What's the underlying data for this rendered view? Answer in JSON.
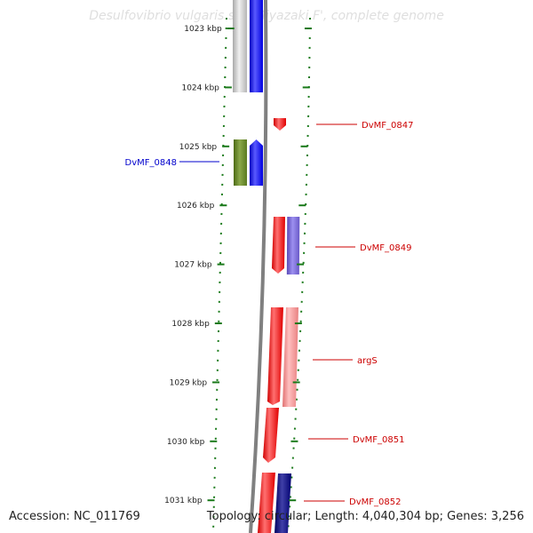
{
  "title": "Desulfovibrio vulgaris str. 'Miyazaki F', complete genome",
  "accession_text": "Accession: NC_011769",
  "topology_text": "Topology: circular; Length: 4,040,304 bp; Genes: 3,256",
  "colors": {
    "backbone": "#888888",
    "tick": "#1a7a1a",
    "forward_label": "#cc0000",
    "reverse_label": "#0000cc"
  },
  "scale": {
    "ticks": [
      {
        "label": "1023 kbp"
      },
      {
        "label": "1024 kbp"
      },
      {
        "label": "1025 kbp"
      },
      {
        "label": "1026 kbp"
      },
      {
        "label": "1027 kbp"
      },
      {
        "label": "1028 kbp"
      },
      {
        "label": "1029 kbp"
      },
      {
        "label": "1030 kbp"
      },
      {
        "label": "1031 kbp"
      }
    ]
  },
  "gene_labels": [
    {
      "text": "DvMF_0847",
      "strand": "forward"
    },
    {
      "text": "DvMF_0848",
      "strand": "reverse"
    },
    {
      "text": "DvMF_0849",
      "strand": "forward"
    },
    {
      "text": "argS",
      "strand": "forward"
    },
    {
      "text": "DvMF_0851",
      "strand": "forward"
    },
    {
      "text": "DvMF_0852",
      "strand": "forward"
    }
  ]
}
